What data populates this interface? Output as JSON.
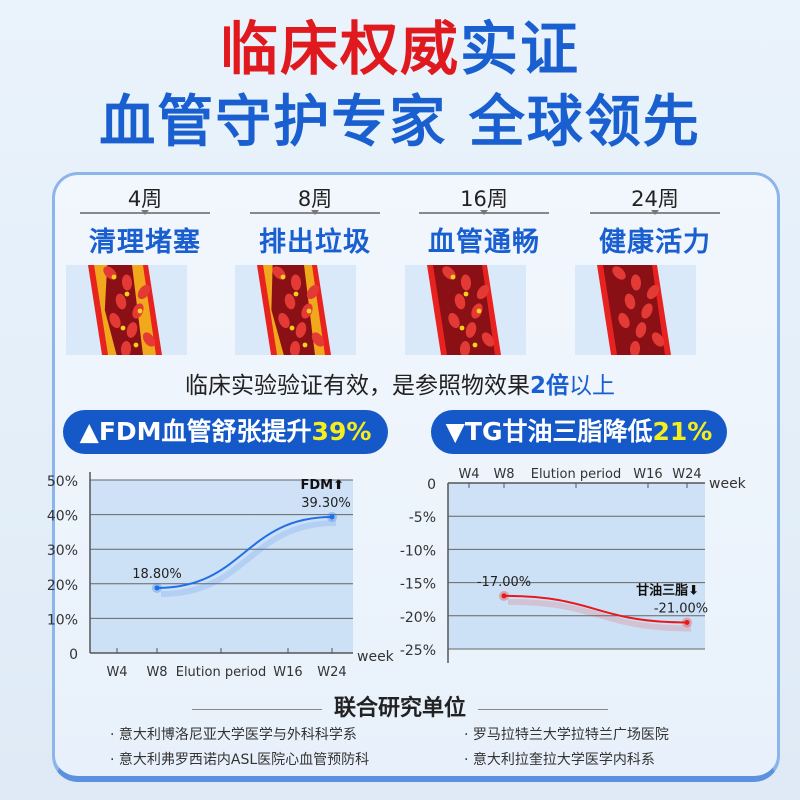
{
  "title": {
    "line1_red": "临床权威",
    "line1_blue": "实证",
    "line2": "血管守护专家 全球领先",
    "red": "#e0191f",
    "blue": "#1a5fd0"
  },
  "stages": [
    {
      "week": "4周",
      "title": "清理堵塞"
    },
    {
      "week": "8周",
      "title": "排出垃圾"
    },
    {
      "week": "16周",
      "title": "血管通畅"
    },
    {
      "week": "24周",
      "title": "健康活力"
    }
  ],
  "claim": {
    "text": "临床实验验证有效，是参照物效果",
    "highlight": "2倍",
    "suffix": "以上"
  },
  "badges": [
    {
      "arrow": "▲",
      "label": "FDM血管舒张提升",
      "value": "39%"
    },
    {
      "arrow": "▼",
      "label": "TG甘油三脂降低",
      "value": "21%"
    }
  ],
  "chart_data": [
    {
      "type": "line",
      "categories": [
        "W4",
        "W8",
        "Elution period",
        "W16",
        "W24"
      ],
      "xlabel": "week",
      "yticks": [
        "0",
        "10%",
        "20%",
        "30%",
        "40%",
        "50%"
      ],
      "ylim": [
        0,
        50
      ],
      "grid": true,
      "series": [
        {
          "name": "FDM",
          "points": [
            {
              "x": "W8",
              "y": 18.8,
              "label": "18.80%"
            },
            {
              "x": "W24",
              "y": 39.3,
              "label": "39.30%"
            }
          ],
          "color": "#1f6fe8"
        }
      ],
      "annotation": "FDM⬆"
    },
    {
      "type": "line",
      "categories": [
        "W4",
        "W8",
        "Elution period",
        "W16",
        "W24"
      ],
      "xlabel": "week",
      "yticks": [
        "0",
        "-5%",
        "-10%",
        "-15%",
        "-20%",
        "-25%"
      ],
      "ylim": [
        -25,
        0
      ],
      "grid": true,
      "series": [
        {
          "name": "甘油三脂",
          "points": [
            {
              "x": "W8",
              "y": -17.0,
              "label": "-17.00%"
            },
            {
              "x": "W24",
              "y": -21.0,
              "label": "-21.00%"
            }
          ],
          "color": "#e8191c"
        }
      ],
      "annotation": "甘油三脂⬇"
    }
  ],
  "orgs": {
    "heading": "联合研究单位",
    "items": [
      "意大利博洛尼亚大学医学与外科科学系",
      "罗马拉特兰大学拉特兰广场医院",
      "意大利弗罗西诺内ASL医院心血管预防科",
      "意大利拉奎拉大学医学内科系"
    ]
  }
}
